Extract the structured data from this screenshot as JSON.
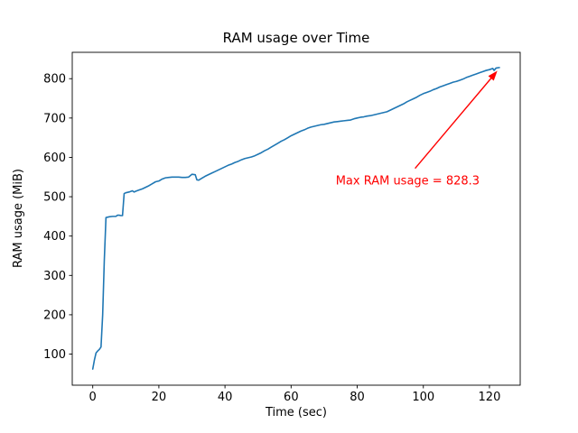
{
  "chart_data": {
    "type": "line",
    "title": "RAM usage over Time",
    "xlabel": "Time (sec)",
    "ylabel": "RAM usage (MiB)",
    "xlim": [
      -6.2,
      129.3
    ],
    "ylim": [
      21,
      867
    ],
    "xticks": [
      0,
      20,
      40,
      60,
      80,
      100,
      120
    ],
    "yticks": [
      100,
      200,
      300,
      400,
      500,
      600,
      700,
      800
    ],
    "grid": false,
    "legend": null,
    "line_color": "#1f77b4",
    "series": [
      {
        "name": "RAM usage",
        "color": "#1f77b4",
        "points": [
          [
            0,
            62
          ],
          [
            0.5,
            85
          ],
          [
            1,
            103
          ],
          [
            1.5,
            108
          ],
          [
            2,
            112
          ],
          [
            2.5,
            118
          ],
          [
            3,
            200
          ],
          [
            3.5,
            340
          ],
          [
            4,
            447
          ],
          [
            5,
            449
          ],
          [
            6,
            450
          ],
          [
            7,
            450
          ],
          [
            7.5,
            453
          ],
          [
            8,
            453
          ],
          [
            8.5,
            452
          ],
          [
            9,
            452
          ],
          [
            9.5,
            508
          ],
          [
            10,
            510
          ],
          [
            11,
            512
          ],
          [
            12,
            515
          ],
          [
            12.5,
            512
          ],
          [
            13,
            514
          ],
          [
            14,
            517
          ],
          [
            15,
            520
          ],
          [
            16,
            524
          ],
          [
            17,
            528
          ],
          [
            18,
            533
          ],
          [
            19,
            538
          ],
          [
            20,
            540
          ],
          [
            21,
            545
          ],
          [
            22,
            548
          ],
          [
            23,
            549
          ],
          [
            24,
            550
          ],
          [
            25,
            550
          ],
          [
            26,
            550
          ],
          [
            27,
            549
          ],
          [
            28,
            549
          ],
          [
            29,
            550
          ],
          [
            30,
            557
          ],
          [
            31,
            556
          ],
          [
            31.5,
            543
          ],
          [
            32,
            542
          ],
          [
            33,
            547
          ],
          [
            34,
            552
          ],
          [
            35,
            556
          ],
          [
            36,
            560
          ],
          [
            37,
            564
          ],
          [
            38,
            568
          ],
          [
            39,
            572
          ],
          [
            40,
            576
          ],
          [
            41,
            580
          ],
          [
            42,
            583
          ],
          [
            43,
            587
          ],
          [
            44,
            590
          ],
          [
            45,
            594
          ],
          [
            46,
            597
          ],
          [
            47,
            599
          ],
          [
            48,
            601
          ],
          [
            49,
            604
          ],
          [
            50,
            608
          ],
          [
            51,
            612
          ],
          [
            52,
            617
          ],
          [
            53,
            621
          ],
          [
            54,
            626
          ],
          [
            55,
            631
          ],
          [
            56,
            636
          ],
          [
            57,
            641
          ],
          [
            58,
            645
          ],
          [
            59,
            650
          ],
          [
            60,
            655
          ],
          [
            61,
            659
          ],
          [
            62,
            663
          ],
          [
            63,
            667
          ],
          [
            64,
            670
          ],
          [
            65,
            674
          ],
          [
            66,
            677
          ],
          [
            67,
            679
          ],
          [
            68,
            681
          ],
          [
            69,
            683
          ],
          [
            70,
            684
          ],
          [
            71,
            686
          ],
          [
            72,
            688
          ],
          [
            73,
            690
          ],
          [
            74,
            691
          ],
          [
            75,
            692
          ],
          [
            76,
            693
          ],
          [
            77,
            694
          ],
          [
            78,
            695
          ],
          [
            79,
            698
          ],
          [
            80,
            700
          ],
          [
            81,
            702
          ],
          [
            82,
            703
          ],
          [
            83,
            705
          ],
          [
            84,
            706
          ],
          [
            85,
            708
          ],
          [
            86,
            710
          ],
          [
            87,
            712
          ],
          [
            88,
            714
          ],
          [
            89,
            716
          ],
          [
            90,
            720
          ],
          [
            91,
            724
          ],
          [
            92,
            728
          ],
          [
            93,
            732
          ],
          [
            94,
            736
          ],
          [
            95,
            741
          ],
          [
            96,
            745
          ],
          [
            97,
            749
          ],
          [
            98,
            753
          ],
          [
            99,
            758
          ],
          [
            100,
            762
          ],
          [
            101,
            765
          ],
          [
            102,
            768
          ],
          [
            103,
            772
          ],
          [
            104,
            775
          ],
          [
            105,
            779
          ],
          [
            106,
            782
          ],
          [
            107,
            785
          ],
          [
            108,
            788
          ],
          [
            109,
            791
          ],
          [
            110,
            793
          ],
          [
            111,
            796
          ],
          [
            112,
            799
          ],
          [
            113,
            803
          ],
          [
            114,
            806
          ],
          [
            115,
            809
          ],
          [
            116,
            812
          ],
          [
            117,
            815
          ],
          [
            118,
            818
          ],
          [
            119,
            821
          ],
          [
            120,
            823
          ],
          [
            121,
            826
          ],
          [
            121.4,
            821
          ],
          [
            122,
            827
          ],
          [
            123,
            828.3
          ]
        ]
      }
    ],
    "annotation": {
      "label": "Max RAM usage = 828.3",
      "color": "#ff0000",
      "text_xy": [
        73.5,
        531
      ],
      "arrow_tail_xy": [
        97.5,
        572
      ],
      "arrow_head_xy": [
        122.4,
        820
      ]
    }
  }
}
